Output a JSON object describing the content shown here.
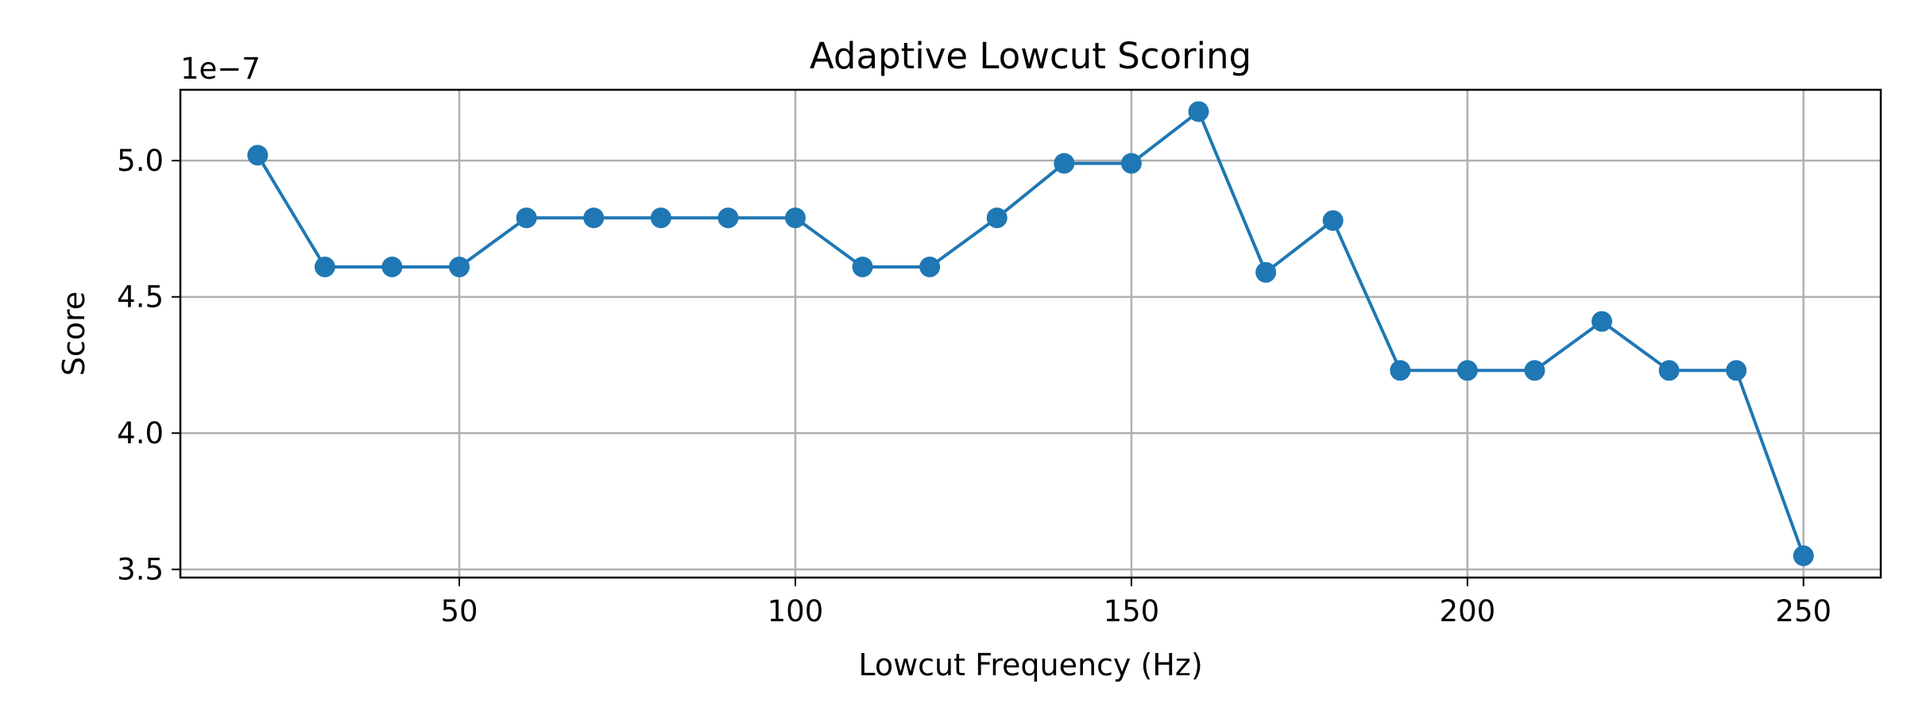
{
  "chart_data": {
    "type": "line",
    "title": "Adaptive Lowcut Scoring",
    "xlabel": "Lowcut Frequency (Hz)",
    "ylabel": "Score",
    "y_offset_label": "1e−7",
    "xlim": [
      8.5,
      261.5
    ],
    "ylim": [
      3.47,
      5.26
    ],
    "x_ticks": [
      50,
      100,
      150,
      200,
      250
    ],
    "x_tick_labels": [
      "50",
      "100",
      "150",
      "200",
      "250"
    ],
    "y_ticks": [
      3.5,
      4.0,
      4.5,
      5.0
    ],
    "y_tick_labels": [
      "3.5",
      "4.0",
      "4.5",
      "5.0"
    ],
    "grid": true,
    "color": "#1f77b4",
    "marker": "circle",
    "series": [
      {
        "x": [
          20,
          30,
          40,
          50,
          60,
          70,
          80,
          90,
          100,
          110,
          120,
          130,
          140,
          150,
          160,
          170,
          180,
          190,
          200,
          210,
          220,
          230,
          240,
          250
        ],
        "y": [
          5.02,
          4.61,
          4.61,
          4.61,
          4.79,
          4.79,
          4.79,
          4.79,
          4.79,
          4.61,
          4.61,
          4.79,
          4.99,
          4.99,
          5.18,
          4.59,
          4.78,
          4.23,
          4.23,
          4.23,
          4.41,
          4.23,
          4.23,
          3.55
        ]
      }
    ]
  }
}
